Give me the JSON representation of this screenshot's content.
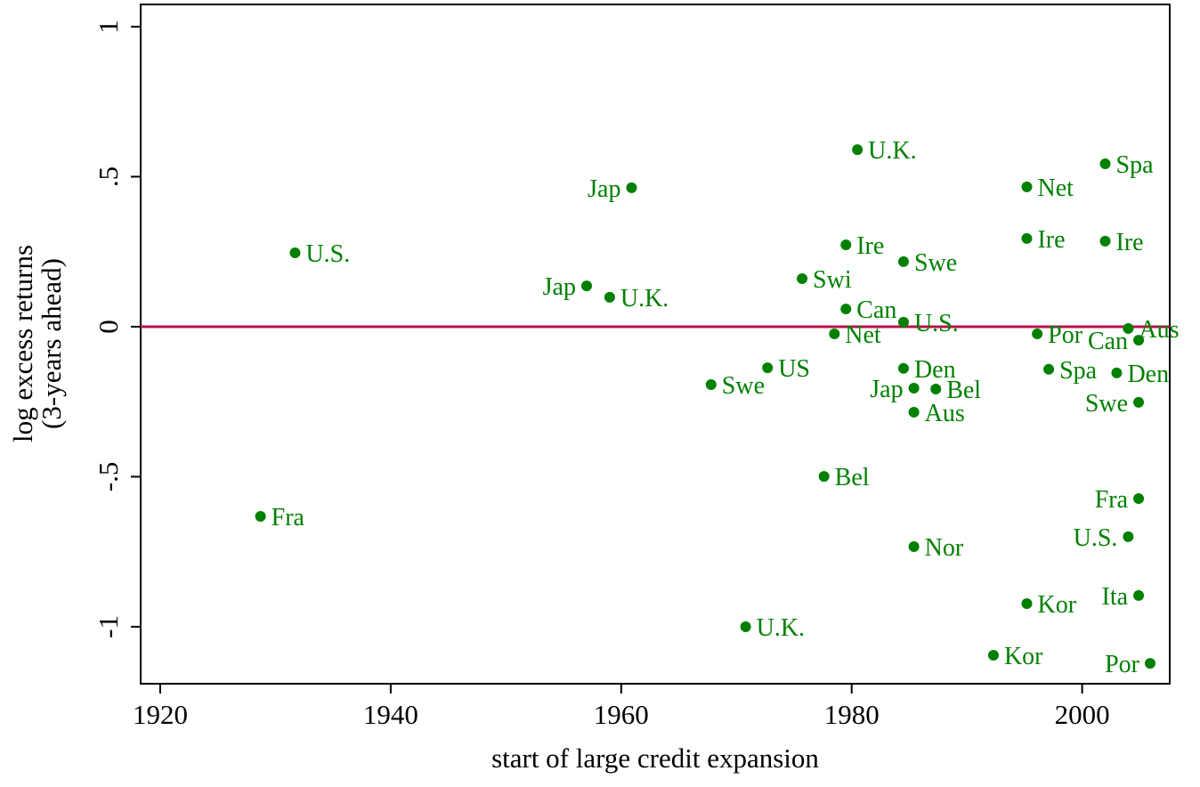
{
  "chart_data": {
    "type": "scatter",
    "x_label": "start of large credit expansion",
    "y_label": [
      "log excess returns",
      "(3-years ahead)"
    ],
    "xlim": [
      1918.3,
      2007.6
    ],
    "ylim": [
      -1.19,
      1.074
    ],
    "xticks": [
      1920,
      1940,
      1960,
      1980,
      2000
    ],
    "yticks": [
      {
        "value": -1,
        "label": "-1"
      },
      {
        "value": -0.5,
        "label": "-.5"
      },
      0,
      {
        "value": 0.5,
        "label": ".5"
      },
      1
    ],
    "reference_line": {
      "value": 0,
      "color": "#b8114b"
    },
    "series": [
      {
        "color": "#008000",
        "x": [
          1931.7,
          1928.7,
          1960.9,
          1957,
          1959,
          1980.5,
          1979.5,
          1984.5,
          1975.7,
          1979.5,
          1984.5,
          1978.5,
          1972.7,
          1967.8,
          1984.5,
          1985.4,
          1987.3,
          1985.4,
          1977.6,
          1985.4,
          1970.8,
          1992.3,
          1995.2,
          1995.2,
          2002,
          2002,
          2004,
          2004.9,
          1996.1,
          1997.1,
          2003,
          2004.9,
          2004.9,
          2004,
          2004.9,
          1995.2,
          2005.9
        ],
        "values": [
          0.246,
          -0.632,
          0.463,
          0.136,
          0.098,
          0.59,
          0.273,
          0.217,
          0.16,
          0.059,
          0.015,
          -0.024,
          -0.137,
          -0.193,
          -0.139,
          -0.205,
          -0.208,
          -0.285,
          -0.499,
          -0.733,
          -1.0,
          -1.095,
          0.466,
          0.294,
          0.543,
          0.285,
          -0.006,
          -0.045,
          -0.024,
          -0.142,
          -0.154,
          -0.252,
          -0.573,
          -0.7,
          -0.896,
          -0.923,
          -1.122
        ],
        "point_labels": [
          "U.S.",
          "Fra",
          "Jap",
          "Jap",
          "U.K.",
          "U.K.",
          "Ire",
          "Swe",
          "Swi",
          "Can",
          "U.S.",
          "Net",
          "US",
          "Swe",
          "Den",
          "Jap",
          "Bel",
          "Aus",
          "Bel",
          "Nor",
          "U.K.",
          "Kor",
          "Net",
          "Ire",
          "Spa",
          "Ire",
          "Aus",
          "Can",
          "Por",
          "Spa",
          "Den",
          "Swe",
          "Fra",
          "U.S.",
          "Ita",
          "Kor",
          "Por"
        ]
      }
    ]
  }
}
